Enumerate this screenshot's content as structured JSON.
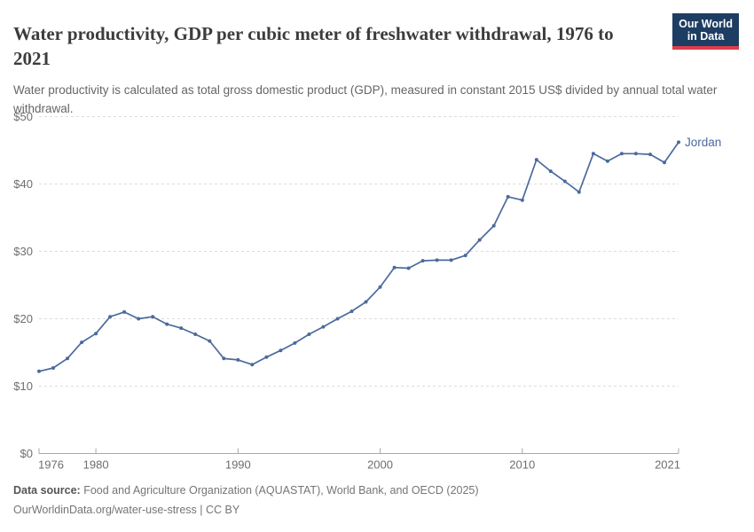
{
  "header": {
    "title": "Water productivity, GDP per cubic meter of freshwater withdrawal, 1976 to 2021",
    "subtitle": "Water productivity is calculated as total gross domestic product (GDP), measured in constant 2015 US$ divided by annual total water withdrawal.",
    "logo": {
      "line1": "Our World",
      "line2": "in Data",
      "bg_color": "#1d3d63",
      "accent_color": "#dc3e4d"
    }
  },
  "chart_data": {
    "type": "line",
    "title": "Water productivity, GDP per cubic meter of freshwater withdrawal, 1976 to 2021",
    "xlabel": "",
    "ylabel": "",
    "xlim": [
      1976,
      2021
    ],
    "ylim": [
      0,
      50
    ],
    "grid": "horizontal-dashed",
    "legend_position": "end-of-line-label",
    "yticks": [
      {
        "v": 0,
        "label": "$0"
      },
      {
        "v": 10,
        "label": "$10"
      },
      {
        "v": 20,
        "label": "$20"
      },
      {
        "v": 30,
        "label": "$30"
      },
      {
        "v": 40,
        "label": "$40"
      },
      {
        "v": 50,
        "label": "$50"
      }
    ],
    "xticks": [
      {
        "v": 1976,
        "label": "1976"
      },
      {
        "v": 1980,
        "label": "1980"
      },
      {
        "v": 1990,
        "label": "1990"
      },
      {
        "v": 2000,
        "label": "2000"
      },
      {
        "v": 2010,
        "label": "2010"
      },
      {
        "v": 2021,
        "label": "2021"
      }
    ],
    "series": [
      {
        "name": "Jordan",
        "color": "#4c6a9c",
        "x": [
          1976,
          1977,
          1978,
          1979,
          1980,
          1981,
          1982,
          1983,
          1984,
          1985,
          1986,
          1987,
          1988,
          1989,
          1990,
          1991,
          1992,
          1993,
          1994,
          1995,
          1996,
          1997,
          1998,
          1999,
          2000,
          2001,
          2002,
          2003,
          2004,
          2005,
          2006,
          2007,
          2008,
          2009,
          2010,
          2011,
          2012,
          2013,
          2014,
          2015,
          2016,
          2017,
          2018,
          2019,
          2020,
          2021
        ],
        "values": [
          12.2,
          12.7,
          14.1,
          16.5,
          17.8,
          20.3,
          21.0,
          20.0,
          20.3,
          19.2,
          18.6,
          17.7,
          16.7,
          14.1,
          13.9,
          13.2,
          14.3,
          15.3,
          16.4,
          17.7,
          18.8,
          20.0,
          21.1,
          22.5,
          24.7,
          27.6,
          27.5,
          28.6,
          28.7,
          28.7,
          29.4,
          31.7,
          33.8,
          38.1,
          37.6,
          43.6,
          41.9,
          40.4,
          38.8,
          44.5,
          43.4,
          44.5,
          44.5,
          44.4,
          43.2,
          46.2
        ]
      }
    ]
  },
  "footer": {
    "source_label": "Data source:",
    "source_text": "Food and Agriculture Organization (AQUASTAT), World Bank, and OECD (2025)",
    "link_text": "OurWorldinData.org/water-use-stress | CC BY"
  }
}
